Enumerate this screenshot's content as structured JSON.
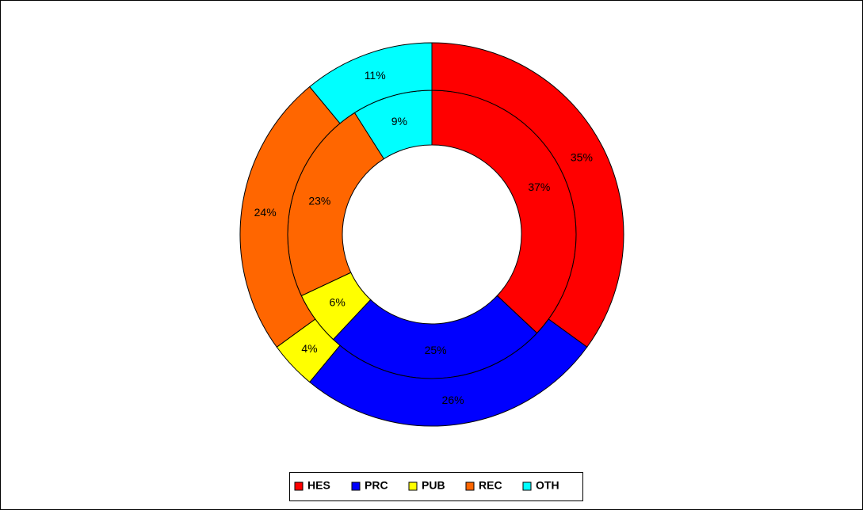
{
  "chart_data": {
    "type": "donut",
    "categories": [
      "HES",
      "PRC",
      "PUB",
      "REC",
      "OTH"
    ],
    "colors": [
      "#ff0000",
      "#0000ff",
      "#ffff00",
      "#ff6600",
      "#00ffff"
    ],
    "series": [
      {
        "values": [
          37,
          25,
          6,
          23,
          9
        ],
        "value_labels": [
          "37%",
          "25%",
          "6%",
          "23%",
          "9%"
        ]
      },
      {
        "values": [
          35,
          26,
          4,
          24,
          11
        ],
        "value_labels": [
          "35%",
          "26%",
          "4%",
          "24%",
          "11%"
        ]
      }
    ],
    "legend": "bottom"
  }
}
